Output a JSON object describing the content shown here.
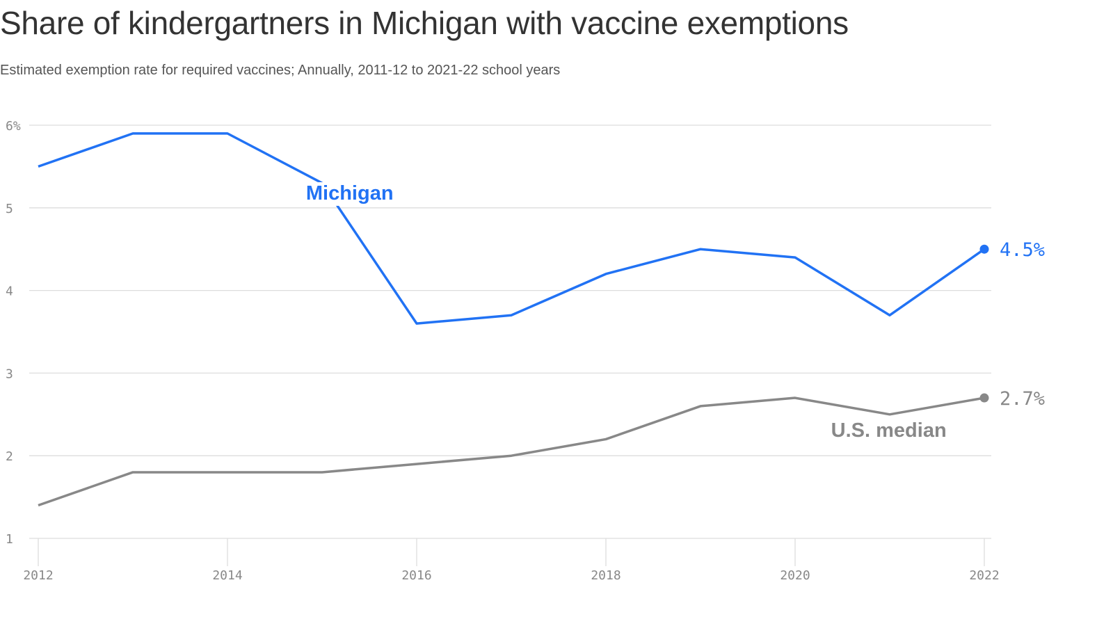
{
  "chart_data": {
    "type": "line",
    "title": "Share of kindergartners in Michigan with vaccine exemptions",
    "subtitle": "Estimated exemption rate for required vaccines; Annually, 2011-12 to 2021-22 school years",
    "xlabel": "",
    "ylabel": "",
    "x": [
      2012,
      2013,
      2014,
      2015,
      2016,
      2017,
      2018,
      2019,
      2020,
      2021,
      2022
    ],
    "xlim": [
      2012,
      2022
    ],
    "ylim": [
      1,
      6
    ],
    "x_ticks": [
      2012,
      2014,
      2016,
      2018,
      2020,
      2022
    ],
    "x_tick_labels": [
      "2012",
      "2014",
      "2016",
      "2018",
      "2020",
      "2022"
    ],
    "y_ticks": [
      1,
      2,
      3,
      4,
      5,
      6
    ],
    "y_tick_labels": [
      "1",
      "2",
      "3",
      "4",
      "5",
      "6%"
    ],
    "grid": true,
    "series": [
      {
        "name": "Michigan",
        "label": "Michigan",
        "color": "#2172f4",
        "values": [
          5.5,
          5.9,
          5.9,
          5.3,
          3.6,
          3.7,
          4.2,
          4.5,
          4.4,
          3.7,
          4.5
        ],
        "end_label": "4.5%"
      },
      {
        "name": "U.S. median",
        "label": "U.S. median",
        "color": "#888888",
        "values": [
          1.4,
          1.8,
          1.8,
          1.8,
          1.9,
          2.0,
          2.2,
          2.6,
          2.7,
          2.5,
          2.7
        ],
        "end_label": "2.7%"
      }
    ]
  }
}
